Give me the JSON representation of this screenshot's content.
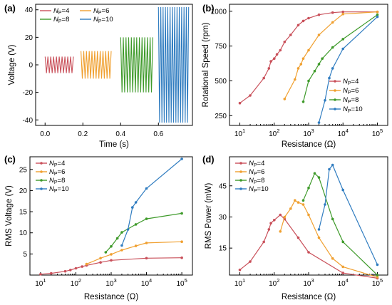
{
  "figure": {
    "colors": {
      "Np4": "#c9505a",
      "Np6": "#f0a030",
      "Np8": "#3e9a2a",
      "Np10": "#2f7cc0"
    }
  },
  "chart_data": [
    {
      "panel": "(a)",
      "type": "line",
      "xlabel": "Time (s)",
      "ylabel": "Voltage (V)",
      "xlim": [
        -0.05,
        0.78
      ],
      "ylim": [
        -44,
        44
      ],
      "xticks": [
        "0.0",
        "0.2",
        "0.4",
        "0.6"
      ],
      "xtick_values": [
        0,
        0.2,
        0.4,
        0.6
      ],
      "yticks": [
        "-40",
        "-20",
        "0",
        "20",
        "40"
      ],
      "ytick_values": [
        -40,
        -20,
        0,
        20,
        40
      ],
      "legend": {
        "placement": "top-left",
        "columns": 2
      },
      "series": [
        {
          "name": "4",
          "key": "Np4",
          "t_range": [
            0.0,
            0.15
          ],
          "amplitude": 6,
          "cycles": 10
        },
        {
          "name": "6",
          "key": "Np6",
          "t_range": [
            0.19,
            0.35
          ],
          "amplitude": 10,
          "cycles": 11
        },
        {
          "name": "8",
          "key": "Np8",
          "t_range": [
            0.4,
            0.57
          ],
          "amplitude": 20,
          "cycles": 12
        },
        {
          "name": "10",
          "key": "Np10",
          "t_range": [
            0.6,
            0.76
          ],
          "amplitude": 42,
          "cycles": 13
        }
      ]
    },
    {
      "panel": "(b)",
      "type": "line",
      "xscale": "log",
      "xlabel": "Resistance (Ω)",
      "ylabel": "Rotational Speed (rpm)",
      "xlim": [
        5,
        200000
      ],
      "ylim": [
        180,
        1050
      ],
      "xtick_values": [
        10,
        100,
        1000,
        10000,
        100000
      ],
      "yticks": [
        "250",
        "500",
        "750",
        "1000"
      ],
      "ytick_values": [
        250,
        500,
        750,
        1000
      ],
      "legend": {
        "placement": "bottom-right",
        "columns": 1
      },
      "series": [
        {
          "name": "4",
          "key": "Np4",
          "x": [
            10,
            20,
            50,
            70,
            80,
            100,
            120,
            150,
            200,
            300,
            500,
            700,
            1000,
            2000,
            5000,
            10000,
            100000
          ],
          "y": [
            340,
            395,
            520,
            590,
            640,
            660,
            690,
            720,
            780,
            830,
            900,
            930,
            950,
            975,
            990,
            995,
            995
          ]
        },
        {
          "name": "6",
          "key": "Np6",
          "x": [
            200,
            400,
            500,
            600,
            700,
            1000,
            2000,
            5000,
            10000,
            100000
          ],
          "y": [
            370,
            510,
            590,
            620,
            660,
            720,
            830,
            920,
            980,
            995
          ]
        },
        {
          "name": "8",
          "key": "Np8",
          "x": [
            700,
            1000,
            1500,
            2000,
            2500,
            5000,
            10000,
            100000
          ],
          "y": [
            350,
            500,
            570,
            620,
            660,
            740,
            800,
            975
          ]
        },
        {
          "name": "10",
          "key": "Np10",
          "x": [
            2000,
            3000,
            4000,
            5000,
            10000,
            100000
          ],
          "y": [
            200,
            360,
            520,
            590,
            730,
            960
          ]
        }
      ]
    },
    {
      "panel": "(c)",
      "type": "line",
      "xscale": "log",
      "xlabel": "Resistance (Ω)",
      "ylabel": "RMS Voltage (V)",
      "xlim": [
        5,
        200000
      ],
      "ylim": [
        0,
        28
      ],
      "xtick_values": [
        10,
        100,
        1000,
        10000,
        100000
      ],
      "yticks": [
        "5",
        "10",
        "15",
        "20",
        "25"
      ],
      "ytick_values": [
        5,
        10,
        15,
        20,
        25
      ],
      "legend": {
        "placement": "top-left",
        "columns": 1
      },
      "series": [
        {
          "name": "4",
          "key": "Np4",
          "x": [
            10,
            20,
            50,
            70,
            100,
            150,
            200,
            500,
            1000,
            10000,
            100000
          ],
          "y": [
            0.2,
            0.4,
            0.9,
            1.2,
            1.6,
            2.0,
            2.3,
            3.0,
            3.5,
            4.0,
            4.1
          ]
        },
        {
          "name": "6",
          "key": "Np6",
          "x": [
            200,
            500,
            1000,
            2000,
            5000,
            10000,
            100000
          ],
          "y": [
            2.6,
            4.0,
            4.9,
            5.9,
            6.9,
            7.6,
            7.9
          ]
        },
        {
          "name": "8",
          "key": "Np8",
          "x": [
            700,
            1000,
            1500,
            2000,
            5000,
            10000,
            100000
          ],
          "y": [
            5.4,
            6.8,
            8.7,
            10.1,
            12.0,
            13.3,
            14.6
          ]
        },
        {
          "name": "10",
          "key": "Np10",
          "x": [
            2000,
            3000,
            4000,
            5000,
            10000,
            100000
          ],
          "y": [
            7.0,
            10.8,
            16.0,
            17.2,
            20.5,
            27.5
          ]
        }
      ]
    },
    {
      "panel": "(d)",
      "type": "line",
      "xscale": "log",
      "xlabel": "Resistance (Ω)",
      "ylabel": "RMS Power (mW)",
      "xlim": [
        5,
        200000
      ],
      "ylim": [
        2,
        59
      ],
      "xtick_values": [
        10,
        100,
        1000,
        10000,
        100000
      ],
      "yticks": [
        "15",
        "30",
        "45"
      ],
      "ytick_values": [
        15,
        30,
        45
      ],
      "legend": {
        "placement": "top-left",
        "columns": 1
      },
      "series": [
        {
          "name": "4",
          "key": "Np4",
          "x": [
            10,
            20,
            50,
            70,
            80,
            100,
            150,
            200,
            500,
            1000,
            10000,
            100000
          ],
          "y": [
            4.5,
            8.5,
            18,
            24,
            27,
            28.5,
            31,
            29,
            20,
            13,
            3,
            0.5
          ]
        },
        {
          "name": "6",
          "key": "Np6",
          "x": [
            150,
            200,
            300,
            400,
            500,
            700,
            1000,
            2000,
            5000,
            10000,
            100000
          ],
          "y": [
            23,
            30,
            34,
            38,
            37,
            36,
            31,
            20,
            10,
            6,
            1
          ]
        },
        {
          "name": "8",
          "key": "Np8",
          "x": [
            700,
            1000,
            1500,
            2000,
            5000,
            10000,
            100000
          ],
          "y": [
            38,
            44,
            51,
            49,
            29,
            18,
            2
          ]
        },
        {
          "name": "10",
          "key": "Np10",
          "x": [
            2000,
            3000,
            4000,
            5000,
            10000,
            100000
          ],
          "y": [
            24,
            36,
            53,
            55,
            43,
            7
          ]
        }
      ]
    }
  ],
  "legend_prefix": "N",
  "legend_subscript": "P",
  "legend_eq": "="
}
